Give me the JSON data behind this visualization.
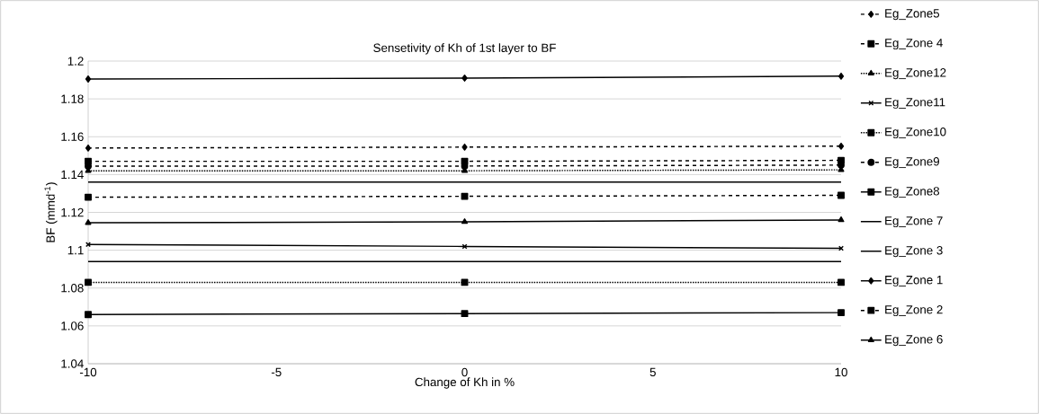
{
  "chart_data": {
    "type": "line",
    "title": "Sensetivity of Kh of 1st layer to BF",
    "xlabel": "Change of Kh in %",
    "ylabel": "BF (mmd$^{-1}$)",
    "x": [
      -10,
      0,
      10
    ],
    "xlim": [
      -10,
      10
    ],
    "xticks": [
      -10,
      -5,
      0,
      5,
      10
    ],
    "ylim": [
      1.04,
      1.2
    ],
    "yticks": [
      1.04,
      1.06,
      1.08,
      1.1,
      1.12,
      1.14,
      1.16,
      1.18,
      1.2
    ],
    "grid": "y",
    "legend": "right",
    "series": [
      {
        "name": "Eg_Zone5",
        "color": "#000000",
        "marker": "diamond",
        "line_style": "dashed",
        "values": [
          1.154,
          1.1545,
          1.155
        ]
      },
      {
        "name": "Eg_Zone 4",
        "color": "#000000",
        "marker": "square",
        "line_style": "dashed",
        "values": [
          1.128,
          1.1285,
          1.129
        ]
      },
      {
        "name": "Eg_Zone12",
        "color": "#000000",
        "marker": "triangle",
        "line_style": "dotted",
        "values": [
          1.142,
          1.142,
          1.1425
        ]
      },
      {
        "name": "Eg_Zone11",
        "color": "#000000",
        "marker": "cross",
        "line_style": "solid",
        "values": [
          1.103,
          1.102,
          1.101
        ]
      },
      {
        "name": "Eg_Zone10",
        "color": "#000000",
        "marker": "square",
        "line_style": "dotted",
        "values": [
          1.083,
          1.083,
          1.083
        ]
      },
      {
        "name": "Eg_Zone9",
        "color": "#000000",
        "marker": "circle",
        "line_style": "dashed",
        "values": [
          1.1445,
          1.1445,
          1.145
        ]
      },
      {
        "name": "Eg_Zone8",
        "color": "#000000",
        "marker": "square",
        "line_style": "solid",
        "values": [
          1.066,
          1.0665,
          1.067
        ]
      },
      {
        "name": "Eg_Zone 7",
        "color": "#000000",
        "marker": "none",
        "line_style": "solid",
        "values": [
          1.094,
          1.094,
          1.094
        ]
      },
      {
        "name": "Eg_Zone 3",
        "color": "#000000",
        "marker": "none",
        "line_style": "solid",
        "values": [
          1.136,
          1.136,
          1.136
        ]
      },
      {
        "name": "Eg_Zone 1",
        "color": "#000000",
        "marker": "diamond",
        "line_style": "solid",
        "values": [
          1.1905,
          1.191,
          1.192
        ]
      },
      {
        "name": "Eg_Zone 2",
        "color": "#000000",
        "marker": "square",
        "line_style": "dashed",
        "values": [
          1.147,
          1.147,
          1.1475
        ]
      },
      {
        "name": "Eg_Zone 6",
        "color": "#000000",
        "marker": "triangle",
        "line_style": "solid",
        "values": [
          1.1145,
          1.115,
          1.116
        ]
      }
    ]
  }
}
